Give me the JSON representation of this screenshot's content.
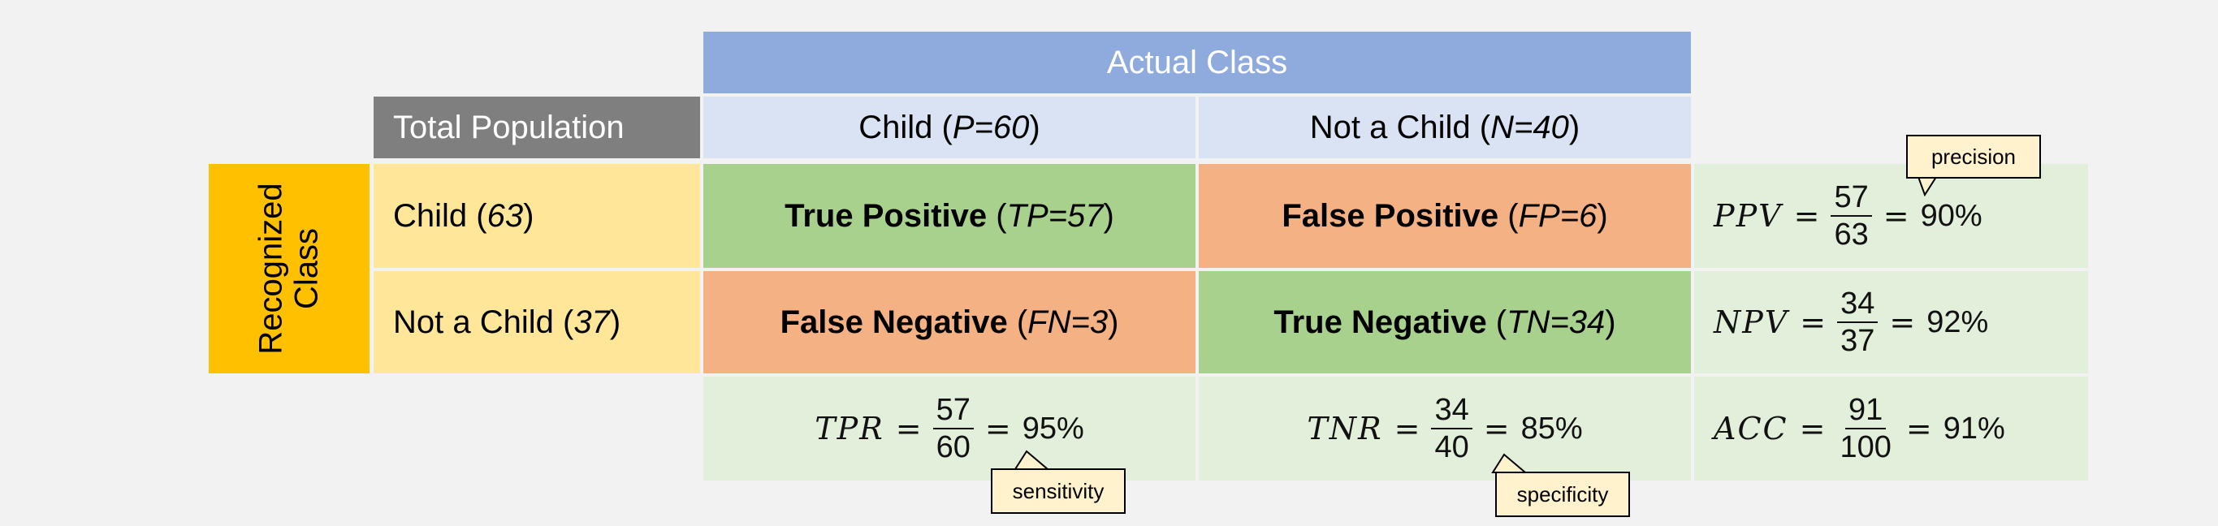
{
  "header": {
    "actual_class": "Actual Class",
    "total_population": "Total Population"
  },
  "columns": {
    "child": {
      "label": "Child (",
      "value": "P=60",
      "close": ")"
    },
    "not_child": {
      "label": "Not a Child (",
      "value": "N=40",
      "close": ")"
    }
  },
  "recognized_class": {
    "line1": "Recognized",
    "line2": "Class"
  },
  "rows": {
    "child": {
      "label": "Child (",
      "value": "63",
      "close": ")"
    },
    "not_child": {
      "label": "Not a Child (",
      "value": "37",
      "close": ")"
    }
  },
  "cells": {
    "tp": {
      "label": "True Positive",
      "open": " (",
      "value": "TP=57",
      "close": ")"
    },
    "fp": {
      "label": "False Positive",
      "open": " (",
      "value": "FP=6",
      "close": ")"
    },
    "fn": {
      "label": "False Negative",
      "open": " (",
      "value": "FN=3",
      "close": ")"
    },
    "tn": {
      "label": "True Negative",
      "open": " (",
      "value": "TN=34",
      "close": ")"
    }
  },
  "metrics": {
    "ppv": {
      "name": "PPV",
      "num": "57",
      "den": "63",
      "result": "90%"
    },
    "npv": {
      "name": "NPV",
      "num": "34",
      "den": "37",
      "result": "92%"
    },
    "tpr": {
      "name": "TPR",
      "num": "57",
      "den": "60",
      "result": "95%"
    },
    "tnr": {
      "name": "TNR",
      "num": "34",
      "den": "40",
      "result": "85%"
    },
    "acc": {
      "name": "ACC",
      "num": "91",
      "den": "100",
      "result": "91%"
    }
  },
  "callouts": {
    "precision": "precision",
    "sensitivity": "sensitivity",
    "specificity": "specificity"
  },
  "symbols": {
    "equals": "="
  },
  "colors": {
    "actual_header": "#8faadc",
    "column_header": "#dae3f3",
    "total_population": "#7f7f7f",
    "recognized": "#ffc000",
    "row_header": "#ffe699",
    "true_cell": "#a9d18e",
    "false_cell": "#f4b183",
    "metric_cell": "#e2efda",
    "callout": "#fff2cc"
  }
}
